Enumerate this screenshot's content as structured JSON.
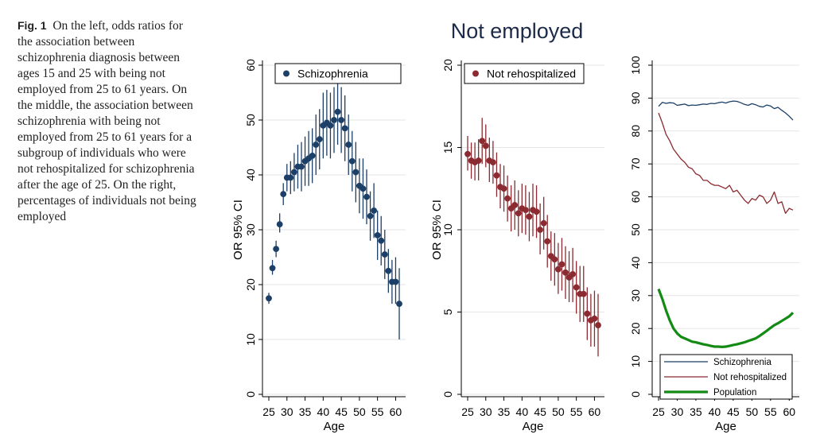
{
  "caption": {
    "label": "Fig. 1",
    "text": "On the left, odds ratios for the association between schizophrenia diagnosis between ages 15 and 25 with being not employed from 25 to 61 years. On the middle, the association between schizophrenia with being not employed from 25 to 61 years for a subgroup of individuals who were not rehospitalized for schizophrenia after the age of 25. On the right, percentages of individuals not being employed"
  },
  "figure_title": "Not employed",
  "colors": {
    "schizophrenia": "#1b3f66",
    "not_rehospitalized": "#8b2a30",
    "population": "#138a13",
    "grid": "#e6e6e6"
  },
  "chart_data": [
    {
      "type": "scatter",
      "name": "Schizophrenia",
      "legend": "Schizophrenia",
      "ylabel": "OR 95% CI",
      "xlabel": "Age",
      "xlim": [
        25,
        61
      ],
      "ylim": [
        0,
        60
      ],
      "xticks": [
        25,
        30,
        35,
        40,
        45,
        50,
        55,
        60
      ],
      "yticks": [
        0,
        10,
        20,
        30,
        40,
        50,
        60
      ],
      "x": [
        25,
        26,
        27,
        28,
        29,
        30,
        31,
        32,
        33,
        34,
        35,
        36,
        37,
        38,
        39,
        40,
        41,
        42,
        43,
        44,
        45,
        46,
        47,
        48,
        49,
        50,
        51,
        52,
        53,
        54,
        55,
        56,
        57,
        58,
        59,
        60,
        61
      ],
      "values": [
        17.5,
        23,
        26.5,
        31,
        36.5,
        39.5,
        39.5,
        40.5,
        41.5,
        41.5,
        42.5,
        43,
        43.5,
        45.5,
        46.5,
        49,
        49.5,
        49,
        50,
        51.5,
        50,
        48.5,
        45.5,
        42.5,
        40.5,
        38,
        37.5,
        36,
        32.5,
        33.5,
        29,
        28,
        25.5,
        22.5,
        20.5,
        20.5,
        16.5
      ],
      "ci_low": [
        16.5,
        21.8,
        25,
        29.5,
        34.5,
        37,
        36.5,
        37,
        37.5,
        37,
        38,
        38,
        38.5,
        40,
        41,
        43,
        43.5,
        43,
        44,
        45.5,
        44,
        42.5,
        40,
        37,
        35,
        33,
        32,
        31,
        28,
        28.5,
        24.5,
        23.5,
        21,
        18.5,
        16.5,
        16.5,
        10
      ],
      "ci_high": [
        18.5,
        24.5,
        28,
        33,
        38.5,
        42,
        42.5,
        44,
        45.5,
        46,
        47,
        48,
        48.5,
        51,
        52,
        55,
        55.5,
        55,
        56,
        57.5,
        56,
        54.5,
        51,
        48,
        46,
        43,
        43,
        41,
        37,
        38.5,
        33.5,
        32.5,
        30,
        26.5,
        24.5,
        25,
        23
      ]
    },
    {
      "type": "scatter",
      "name": "Not rehospitalized",
      "legend": "Not rehospitalized",
      "ylabel": "OR 95% CI",
      "xlabel": "Age",
      "xlim": [
        25,
        61
      ],
      "ylim": [
        0,
        20
      ],
      "xticks": [
        25,
        30,
        35,
        40,
        45,
        50,
        55,
        60
      ],
      "yticks": [
        0,
        5,
        10,
        15,
        20
      ],
      "x": [
        25,
        26,
        27,
        28,
        29,
        30,
        31,
        32,
        33,
        34,
        35,
        36,
        37,
        38,
        39,
        40,
        41,
        42,
        43,
        44,
        45,
        46,
        47,
        48,
        49,
        50,
        51,
        52,
        53,
        54,
        55,
        56,
        57,
        58,
        59,
        60,
        61
      ],
      "values": [
        14.6,
        14.2,
        14.1,
        14.2,
        15.4,
        15.1,
        14.2,
        14.1,
        13.3,
        12.6,
        12.5,
        11.9,
        11.3,
        11.5,
        11.0,
        11.3,
        11.2,
        10.8,
        11.2,
        11.1,
        10.0,
        10.4,
        9.3,
        8.4,
        8.2,
        7.6,
        7.9,
        7.4,
        7.1,
        7.3,
        6.5,
        6.1,
        6.1,
        4.9,
        4.5,
        4.6,
        4.2
      ],
      "ci_low": [
        13.6,
        13.1,
        13.0,
        13.0,
        14.0,
        13.8,
        12.9,
        12.8,
        12.0,
        11.3,
        11.1,
        10.5,
        9.9,
        10.0,
        9.6,
        9.8,
        9.7,
        9.3,
        9.6,
        9.5,
        8.5,
        8.8,
        7.7,
        6.9,
        6.6,
        6.1,
        6.3,
        5.8,
        5.6,
        5.6,
        4.9,
        4.4,
        4.4,
        3.3,
        2.9,
        2.9,
        2.3
      ],
      "ci_high": [
        15.7,
        15.3,
        15.3,
        15.5,
        16.8,
        16.4,
        15.6,
        15.4,
        14.7,
        14.0,
        13.9,
        13.3,
        12.7,
        13.0,
        12.4,
        12.8,
        12.7,
        12.3,
        12.8,
        12.7,
        11.6,
        12.0,
        10.9,
        9.9,
        9.8,
        9.2,
        9.5,
        9.0,
        8.7,
        8.9,
        8.1,
        7.8,
        7.8,
        6.5,
        6.1,
        6.3,
        6.1
      ]
    },
    {
      "type": "line",
      "xlabel": "Age",
      "ylabel": "",
      "xlim": [
        25,
        61
      ],
      "ylim": [
        0,
        100
      ],
      "xticks": [
        25,
        30,
        35,
        40,
        45,
        50,
        55,
        60
      ],
      "yticks": [
        0,
        10,
        20,
        30,
        40,
        50,
        60,
        70,
        80,
        90,
        100
      ],
      "legend_position": "bottom-right",
      "x": [
        25,
        26,
        27,
        28,
        29,
        30,
        31,
        32,
        33,
        34,
        35,
        36,
        37,
        38,
        39,
        40,
        41,
        42,
        43,
        44,
        45,
        46,
        47,
        48,
        49,
        50,
        51,
        52,
        53,
        54,
        55,
        56,
        57,
        58,
        59,
        60,
        61
      ],
      "series": [
        {
          "name": "Schizophrenia",
          "values": [
            87.5,
            88.7,
            88.4,
            88.6,
            88.5,
            87.8,
            88.0,
            88.2,
            87.7,
            87.9,
            87.8,
            88.0,
            88.2,
            88.1,
            88.4,
            88.3,
            88.6,
            88.8,
            88.5,
            88.9,
            89.1,
            89.0,
            88.6,
            88.1,
            87.8,
            88.3,
            88.0,
            87.5,
            87.3,
            87.9,
            87.6,
            86.8,
            87.2,
            86.3,
            85.5,
            84.5,
            83.3
          ]
        },
        {
          "name": "Not rehospitalized",
          "values": [
            85.5,
            82.5,
            79,
            77,
            74.5,
            73,
            71.5,
            70.5,
            69,
            68.5,
            67,
            66.5,
            65,
            65,
            64,
            63.5,
            63.5,
            63,
            62.5,
            63.5,
            61.5,
            62,
            60.5,
            59,
            58,
            59.5,
            59,
            60.5,
            60,
            58,
            59,
            61.5,
            58,
            58.5,
            55,
            56.5,
            56
          ]
        },
        {
          "name": "Population",
          "values": [
            32,
            29,
            25.5,
            22.5,
            20,
            18.5,
            17.5,
            17,
            16.5,
            16,
            15.8,
            15.5,
            15.2,
            15,
            14.7,
            14.5,
            14.5,
            14.4,
            14.5,
            14.7,
            15,
            15.2,
            15.5,
            15.8,
            16.2,
            16.6,
            17,
            17.7,
            18.5,
            19.3,
            20.2,
            21,
            21.6,
            22.3,
            23,
            23.7,
            24.8
          ]
        }
      ]
    }
  ]
}
